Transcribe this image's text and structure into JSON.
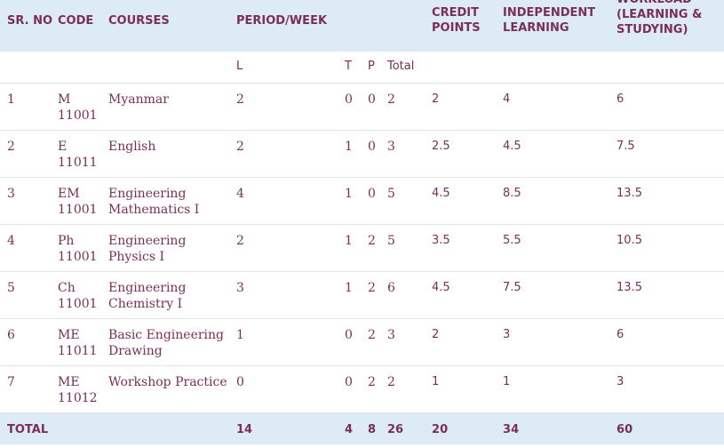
{
  "headers": {
    "sr": "SR. NO",
    "code": "CODE",
    "courses": "COURSES",
    "period": "PERIOD/WEEK",
    "credit": "CREDIT POINTS",
    "independent": "INDEPENDENT LEARNING",
    "workload": "WORKLOAD (LEARNING & STUDYING)"
  },
  "subheaders": {
    "l": "L",
    "t": "T",
    "p": "P",
    "total": "Total"
  },
  "rows": [
    {
      "sr": "1",
      "code": "M 11001",
      "course": "Myanmar",
      "l": "2",
      "t": "0",
      "p": "0",
      "total": "2",
      "credit": "2",
      "independent": "4",
      "workload": "6"
    },
    {
      "sr": "2",
      "code": "E 11011",
      "course": "English",
      "l": "2",
      "t": "1",
      "p": "0",
      "total": "3",
      "credit": "2.5",
      "independent": "4.5",
      "workload": "7.5"
    },
    {
      "sr": "3",
      "code": "EM 11001",
      "course": "Engineering Mathematics I",
      "l": "4",
      "t": "1",
      "p": "0",
      "total": "5",
      "credit": "4.5",
      "independent": "8.5",
      "workload": "13.5"
    },
    {
      "sr": "4",
      "code": "Ph 11001",
      "course": "Engineering Physics I",
      "l": "2",
      "t": "1",
      "p": "2",
      "total": "5",
      "credit": "3.5",
      "independent": "5.5",
      "workload": "10.5"
    },
    {
      "sr": "5",
      "code": "Ch 11001",
      "course": "Engineering Chemistry I",
      "l": "3",
      "t": "1",
      "p": "2",
      "total": "6",
      "credit": "4.5",
      "independent": "7.5",
      "workload": "13.5"
    },
    {
      "sr": "6",
      "code": "ME 11011",
      "course": "Basic Engineering Drawing",
      "l": "1",
      "t": "0",
      "p": "2",
      "total": "3",
      "credit": "2",
      "independent": "3",
      "workload": "6"
    },
    {
      "sr": "7",
      "code": "ME 11012",
      "course": "Workshop Practice",
      "l": "0",
      "t": "0",
      "p": "2",
      "total": "2",
      "credit": "1",
      "independent": "1",
      "workload": "3"
    }
  ],
  "totals": {
    "label": "TOTAL",
    "l": "14",
    "t": "4",
    "p": "8",
    "total": "26",
    "credit": "20",
    "independent": "34",
    "workload": "60"
  },
  "colors": {
    "text": "#7a2e58",
    "header_bg": "#dcebf5"
  }
}
